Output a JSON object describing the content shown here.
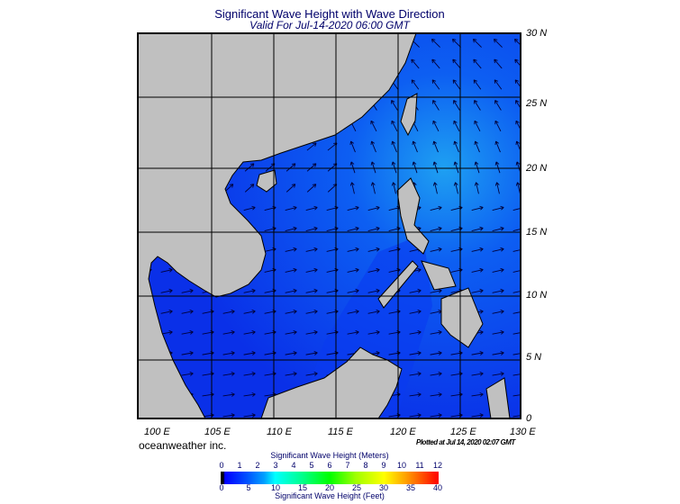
{
  "header": {
    "title": "Significant Wave Height with Wave Direction",
    "subtitle": "Valid For Jul-14-2020 06:00 GMT"
  },
  "map": {
    "lat_labels": [
      "30 N",
      "25 N",
      "20 N",
      "15 N",
      "10 N",
      "5 N",
      "0"
    ],
    "lon_labels": [
      "100 E",
      "105 E",
      "110 E",
      "115 E",
      "120 E",
      "125 E",
      "130 E"
    ],
    "ocean_colors": {
      "low": "#0a2ee8",
      "mid": "#0d55f2",
      "high": "#1ea0f2"
    },
    "land_color": "#c0c0c0",
    "arrow_color": "#00003a"
  },
  "footer": {
    "brand": "oceanweather inc.",
    "plotted": "Plotted at Jul 14, 2020 02:07 GMT"
  },
  "legend": {
    "meters_title": "Significant Wave Height (Meters)",
    "feet_title": "Significant Wave Height (Feet)",
    "meters_ticks": [
      "0",
      "1",
      "2",
      "3",
      "4",
      "5",
      "6",
      "7",
      "8",
      "9",
      "10",
      "11",
      "12"
    ],
    "feet_ticks": [
      "0",
      "5",
      "10",
      "15",
      "20",
      "25",
      "30",
      "35",
      "40"
    ]
  }
}
